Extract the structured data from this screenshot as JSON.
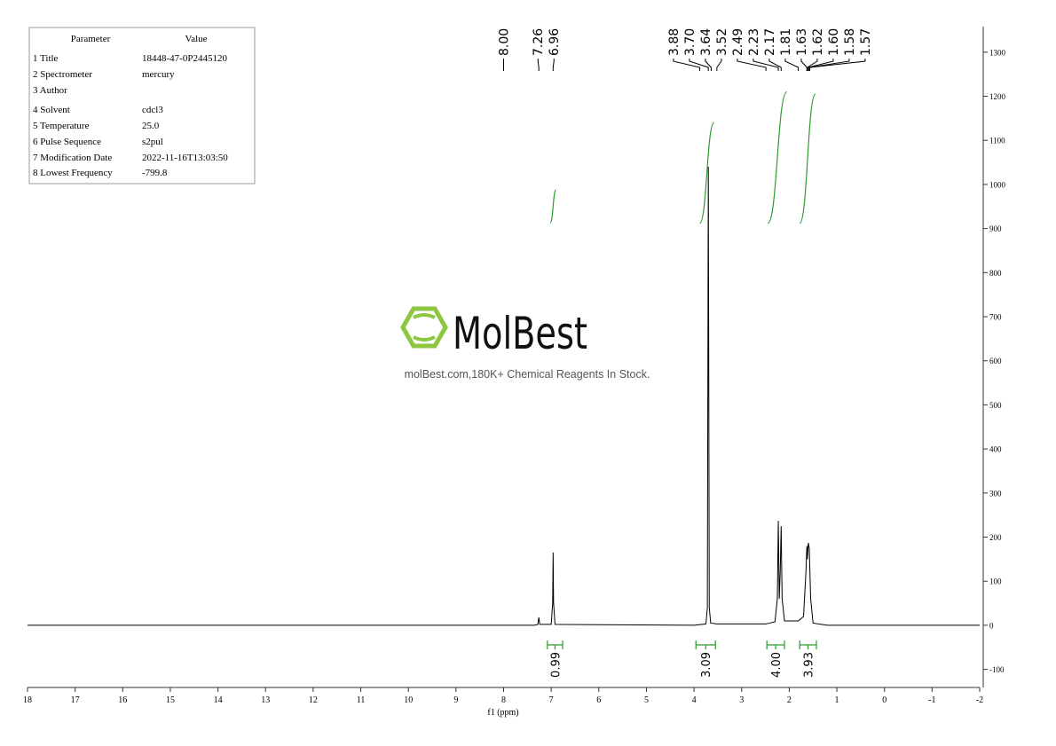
{
  "parameters": {
    "header": [
      "Parameter",
      "Value"
    ],
    "rows": [
      [
        "1 Title",
        "18448-47-0P2445120"
      ],
      [
        "2 Spectrometer",
        "mercury"
      ],
      [
        "3 Author"
      ],
      [
        "4 Solvent",
        "cdcl3"
      ],
      [
        "5 Temperature",
        "25.0"
      ],
      [
        "6 Pulse Sequence",
        "s2pul"
      ],
      [
        "7 Modification Date",
        "2022-11-16T13:03:50"
      ],
      [
        "8 Lowest Frequency",
        "-799.8"
      ]
    ]
  },
  "watermark": {
    "brand": "MolBest",
    "tagline": "molBest.com,180K+ Chemical Reagents In Stock."
  },
  "chart_data": {
    "type": "nmr",
    "xlabel": "f1 (ppm)",
    "color": "#000000",
    "integral_color": "#2e9a2e",
    "xlim": [
      18,
      -2
    ],
    "xticks": [
      18,
      17,
      16,
      15,
      14,
      13,
      12,
      11,
      10,
      9,
      8,
      7,
      6,
      5,
      4,
      3,
      2,
      1,
      0,
      -1,
      -2
    ],
    "ylim": [
      -141,
      1358
    ],
    "yticks": [
      -100,
      0,
      100,
      200,
      300,
      400,
      500,
      600,
      700,
      800,
      900,
      1000,
      1100,
      1200,
      1300
    ],
    "x": [
      18,
      7.35,
      7.28,
      7.26,
      7.24,
      7.0,
      6.97,
      6.96,
      6.95,
      6.92,
      4.0,
      3.75,
      3.72,
      3.7,
      3.68,
      3.65,
      3.52,
      2.49,
      2.3,
      2.25,
      2.23,
      2.21,
      2.19,
      2.17,
      2.15,
      2.1,
      1.81,
      1.7,
      1.65,
      1.63,
      1.62,
      1.6,
      1.58,
      1.55,
      1.5,
      1.2,
      -2
    ],
    "values": [
      0,
      0,
      2,
      18,
      2,
      2,
      50,
      165,
      50,
      2,
      0,
      3,
      40,
      1040,
      40,
      5,
      3,
      3,
      8,
      60,
      237,
      60,
      120,
      225,
      60,
      10,
      10,
      20,
      120,
      180,
      150,
      187,
      175,
      60,
      5,
      0,
      0
    ],
    "peak_labels": [
      {
        "value": 8,
        "label": "8.00"
      },
      {
        "value": 7.26,
        "label": "7.26"
      },
      {
        "value": 6.96,
        "label": "6.96"
      },
      {
        "value": 3.88,
        "label": "3.88"
      },
      {
        "value": 3.7,
        "label": "3.70"
      },
      {
        "value": 3.64,
        "label": "3.64"
      },
      {
        "value": 3.52,
        "label": "3.52"
      },
      {
        "value": 2.49,
        "label": "2.49"
      },
      {
        "value": 2.23,
        "label": "2.23"
      },
      {
        "value": 2.17,
        "label": "2.17"
      },
      {
        "value": 1.81,
        "label": "1.81"
      },
      {
        "value": 1.63,
        "label": "1.63"
      },
      {
        "value": 1.62,
        "label": "1.62"
      },
      {
        "value": 1.6,
        "label": "1.60"
      },
      {
        "value": 1.58,
        "label": "1.58"
      },
      {
        "value": 1.57,
        "label": "1.57"
      }
    ],
    "integrals": {
      "ranges": [
        [
          7.08,
          6.76
        ],
        [
          3.96,
          3.55
        ],
        [
          2.47,
          2.1
        ],
        [
          1.78,
          1.43
        ]
      ],
      "values": [
        0.99,
        3.09,
        4,
        3.93
      ],
      "value_labels": [
        "0.99",
        "3.09",
        "4.00",
        "3.93"
      ]
    },
    "integral_curves": [
      {
        "x": [
          7.02,
          6.9
        ],
        "y": [
          913,
          988
        ]
      },
      {
        "x": [
          3.88,
          3.58
        ],
        "y": [
          912,
          1140
        ]
      },
      {
        "x": [
          2.45,
          2.05
        ],
        "y": [
          912,
          1210
        ]
      },
      {
        "x": [
          1.78,
          1.45
        ],
        "y": [
          912,
          1205
        ]
      }
    ]
  }
}
